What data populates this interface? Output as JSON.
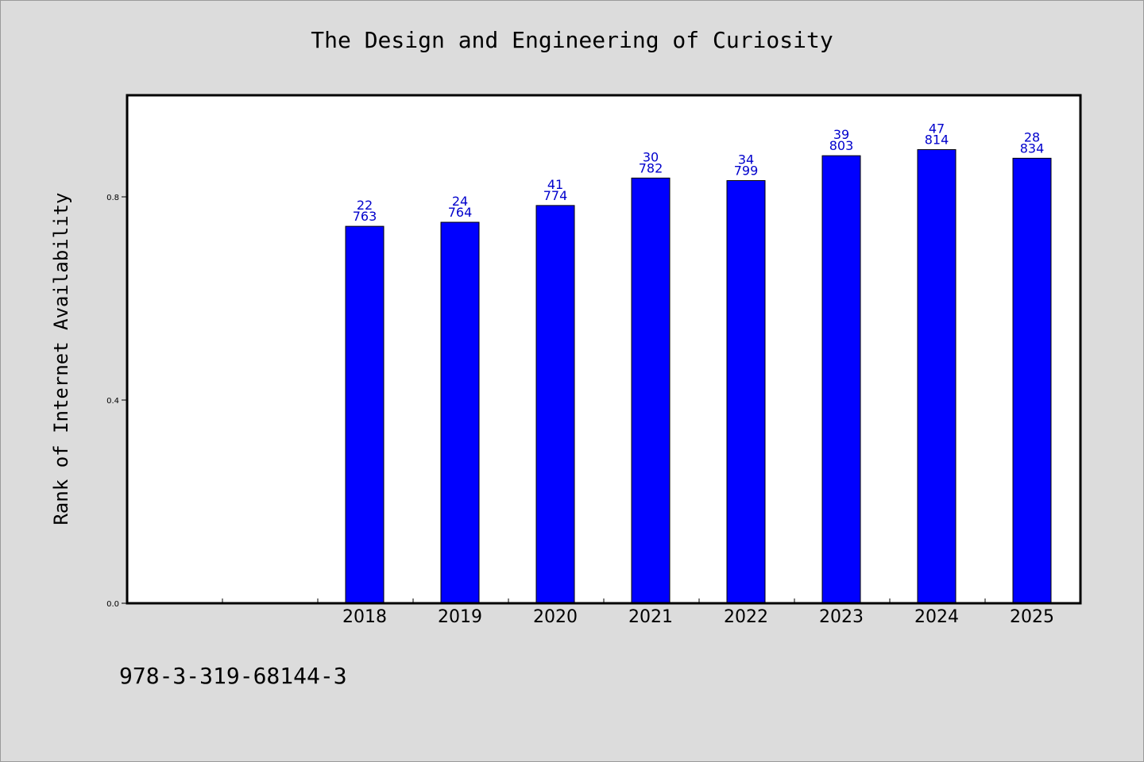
{
  "chart_data": {
    "type": "bar",
    "title": "The Design and Engineering of Curiosity",
    "xlabel": "",
    "ylabel": "Rank of Internet Availability",
    "categories": [
      "2018",
      "2019",
      "2020",
      "2021",
      "2022",
      "2023",
      "2024",
      "2025"
    ],
    "values": [
      0.742,
      0.75,
      0.783,
      0.837,
      0.832,
      0.881,
      0.893,
      0.876
    ],
    "bar_labels_top": [
      "22",
      "24",
      "41",
      "30",
      "34",
      "39",
      "47",
      "28"
    ],
    "bar_labels_bottom": [
      "763",
      "764",
      "774",
      "782",
      "799",
      "803",
      "814",
      "834"
    ],
    "yticks": [
      "0.0",
      "0.4",
      "0.8"
    ],
    "ylim": [
      0,
      1.0
    ],
    "grid": false,
    "bar_color": "#0000ff",
    "label_color": "#0000cc",
    "plot_background": "#ffffff",
    "page_background": "#dcdcdc"
  },
  "footer_text": "978-3-319-68144-3"
}
